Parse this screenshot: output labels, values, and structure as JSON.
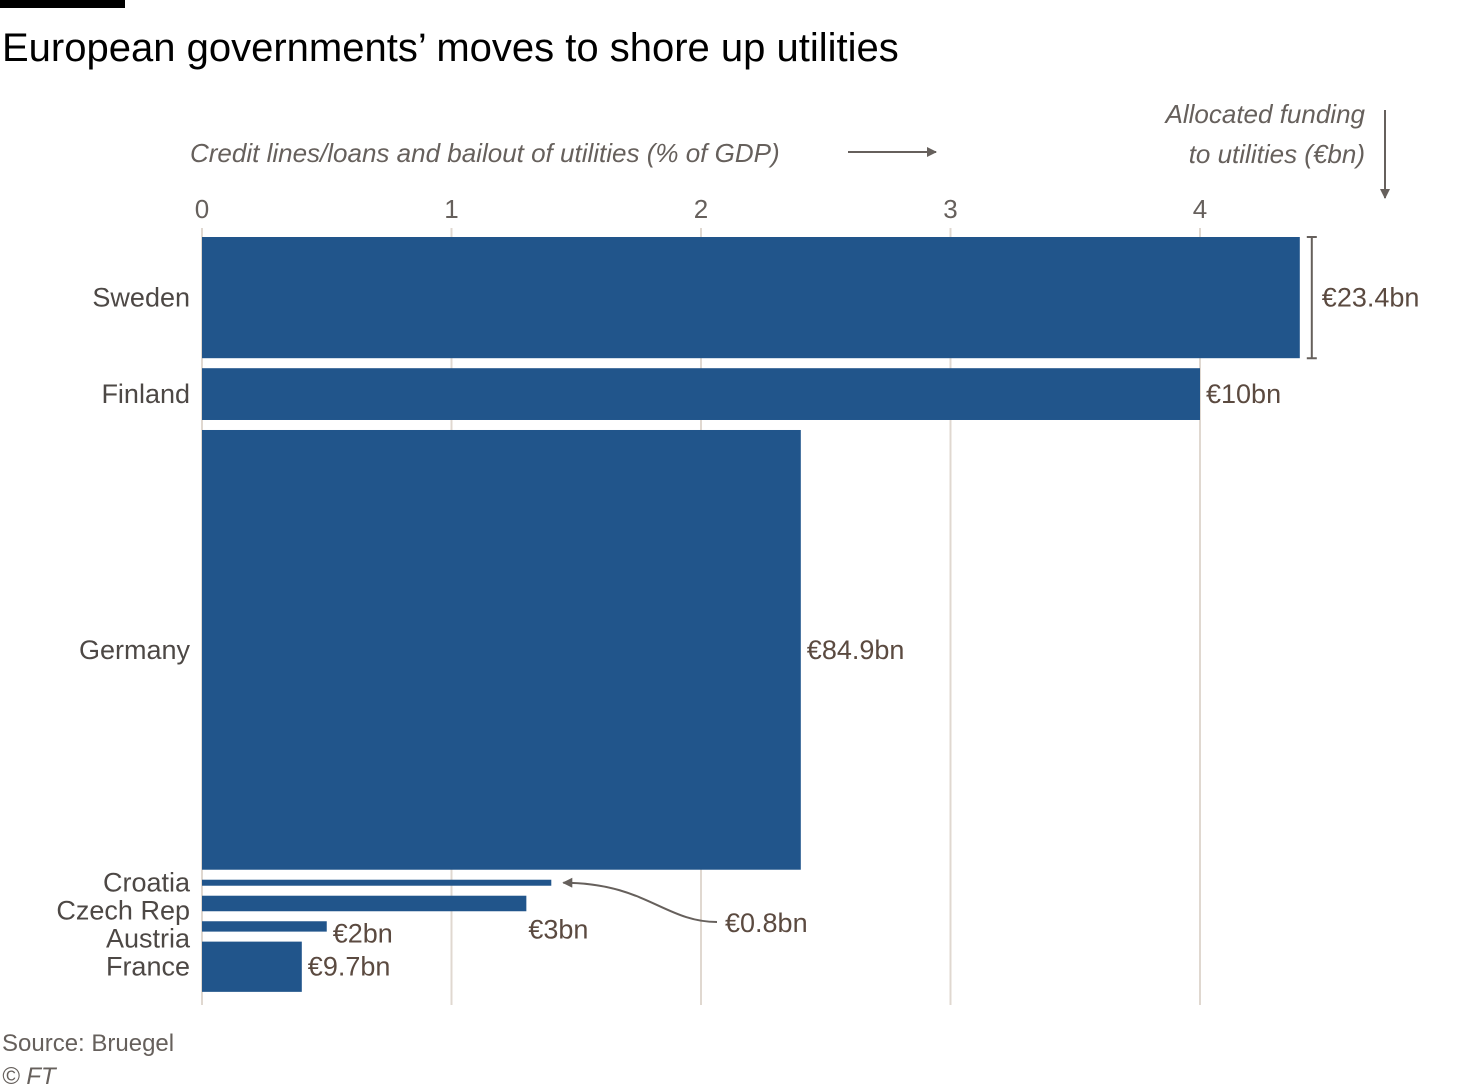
{
  "header": {
    "title": "European governments’ moves to shore up utilities"
  },
  "footer": {
    "source": "Source: Bruegel",
    "copyright": "© FT"
  },
  "colors": {
    "bar": "#21558b",
    "grid": "#e0d8d0",
    "text": "#66605c",
    "value_label": "#5b4a40"
  },
  "chart_data": {
    "type": "bar",
    "orientation": "horizontal",
    "bar_width_encodes": "Allocated funding to utilities (€bn)",
    "x_axis_label": "Credit lines/loans and bailout of utilities (% of GDP)",
    "y_axis_label": "Allocated funding to utilities (€bn)",
    "x_range": [
      0,
      4.4
    ],
    "x_ticks": [
      "0",
      "1",
      "2",
      "3",
      "4"
    ],
    "grid": true,
    "categories": [
      "Sweden",
      "Finland",
      "Germany",
      "Croatia",
      "Czech Rep",
      "Austria",
      "France"
    ],
    "series": [
      {
        "values_pct_gdp": [
          4.4,
          4.0,
          2.4,
          1.4,
          1.3,
          0.5,
          0.4
        ],
        "funding_eur_bn": [
          23.4,
          10,
          84.9,
          0.8,
          3,
          2,
          9.7
        ],
        "funding_labels": [
          "€23.4bn",
          "€10bn",
          "€84.9bn",
          "€0.8bn",
          "€3bn",
          "€2bn",
          "€9.7bn"
        ]
      }
    ]
  }
}
